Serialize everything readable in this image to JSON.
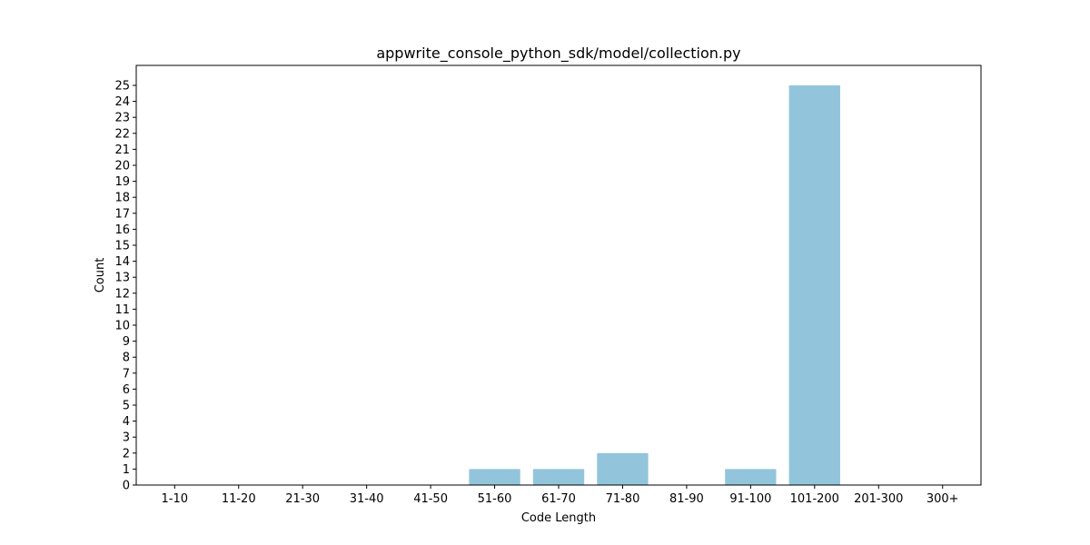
{
  "chart_data": {
    "type": "bar",
    "title": "appwrite_console_python_sdk/model/collection.py",
    "xlabel": "Code Length",
    "ylabel": "Count",
    "categories": [
      "1-10",
      "11-20",
      "21-30",
      "31-40",
      "41-50",
      "51-60",
      "61-70",
      "71-80",
      "81-90",
      "91-100",
      "101-200",
      "201-300",
      "300+"
    ],
    "values": [
      0,
      0,
      0,
      0,
      0,
      1,
      1,
      2,
      0,
      1,
      25,
      0,
      0
    ],
    "ylim": [
      0,
      26.25
    ],
    "yticks": [
      0,
      1,
      2,
      3,
      4,
      5,
      6,
      7,
      8,
      9,
      10,
      11,
      12,
      13,
      14,
      15,
      16,
      17,
      18,
      19,
      20,
      21,
      22,
      23,
      24,
      25
    ],
    "grid": false,
    "bar_color": "#92c5dc"
  }
}
